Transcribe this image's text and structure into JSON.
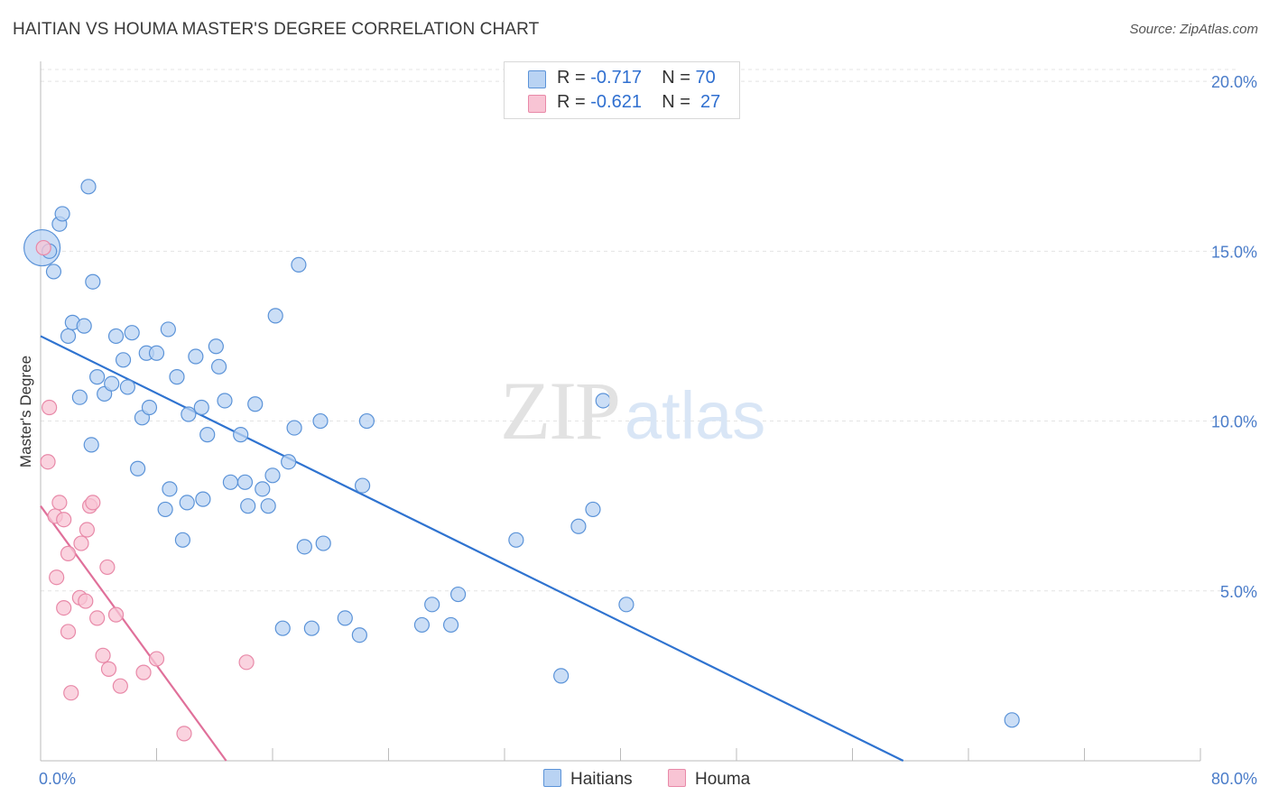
{
  "title": "HAITIAN VS HOUMA MASTER'S DEGREE CORRELATION CHART",
  "source": "Source: ZipAtlas.com",
  "watermark": {
    "part1": "ZIP",
    "part2": "atlas"
  },
  "legend": {
    "items": [
      {
        "r_label": "R =",
        "r_value": "-0.717",
        "n_label": "N =",
        "n_value": "70"
      },
      {
        "r_label": "R =",
        "r_value": "-0.621",
        "n_label": "N =",
        "n_value": "27"
      }
    ]
  },
  "colors": {
    "haitians_fill": "#b9d3f3",
    "haitians_stroke": "#5b93d8",
    "haitians_line": "#2f73d0",
    "houma_fill": "#f8c4d4",
    "houma_stroke": "#e889a8",
    "houma_line": "#e0709a",
    "tick_text": "#4a7cc9",
    "grid": "#e4e4e4"
  },
  "chart_data": {
    "type": "scatter",
    "title": "HAITIAN VS HOUMA MASTER'S DEGREE CORRELATION CHART",
    "xlabel": "",
    "ylabel": "Master's Degree",
    "xlim": [
      0,
      80
    ],
    "ylim": [
      0,
      20.8
    ],
    "y_ticks": [
      5,
      10,
      15,
      20
    ],
    "y_tick_labels": [
      "5.0%",
      "10.0%",
      "15.0%",
      "20.0%"
    ],
    "x_tick_labels": [
      "0.0%",
      "80.0%"
    ],
    "grid": true,
    "series": [
      {
        "name": "Haitians",
        "r": -0.717,
        "n": 70,
        "trend": {
          "x0": 0,
          "y0": 12.5,
          "x1": 59.5,
          "y1": 0
        },
        "points": [
          [
            0.1,
            15.1
          ],
          [
            0.6,
            15.0
          ],
          [
            0.9,
            14.4
          ],
          [
            1.3,
            15.8
          ],
          [
            1.5,
            16.1
          ],
          [
            3.3,
            16.9
          ],
          [
            3.6,
            14.1
          ],
          [
            1.9,
            12.5
          ],
          [
            2.2,
            12.9
          ],
          [
            3.0,
            12.8
          ],
          [
            2.7,
            10.7
          ],
          [
            3.9,
            11.3
          ],
          [
            4.4,
            10.8
          ],
          [
            4.9,
            11.1
          ],
          [
            5.2,
            12.5
          ],
          [
            5.7,
            11.8
          ],
          [
            6.0,
            11.0
          ],
          [
            6.3,
            12.6
          ],
          [
            7.0,
            10.1
          ],
          [
            7.3,
            12.0
          ],
          [
            7.5,
            10.4
          ],
          [
            8.0,
            12.0
          ],
          [
            8.8,
            12.7
          ],
          [
            9.4,
            11.3
          ],
          [
            10.2,
            10.2
          ],
          [
            10.7,
            11.9
          ],
          [
            11.1,
            10.4
          ],
          [
            11.5,
            9.6
          ],
          [
            12.1,
            12.2
          ],
          [
            12.3,
            11.6
          ],
          [
            12.7,
            10.6
          ],
          [
            13.1,
            8.2
          ],
          [
            13.8,
            9.6
          ],
          [
            14.1,
            8.2
          ],
          [
            14.8,
            10.5
          ],
          [
            15.3,
            8.0
          ],
          [
            15.7,
            7.5
          ],
          [
            16.0,
            8.4
          ],
          [
            16.2,
            13.1
          ],
          [
            17.1,
            8.8
          ],
          [
            17.5,
            9.8
          ],
          [
            17.8,
            14.6
          ],
          [
            19.3,
            10.0
          ],
          [
            22.5,
            10.0
          ],
          [
            22.2,
            8.1
          ],
          [
            3.5,
            9.3
          ],
          [
            6.7,
            8.6
          ],
          [
            8.6,
            7.4
          ],
          [
            8.9,
            8.0
          ],
          [
            9.8,
            6.5
          ],
          [
            10.1,
            7.6
          ],
          [
            11.2,
            7.7
          ],
          [
            14.3,
            7.5
          ],
          [
            18.2,
            6.3
          ],
          [
            19.5,
            6.4
          ],
          [
            16.7,
            3.9
          ],
          [
            18.7,
            3.9
          ],
          [
            21.0,
            4.2
          ],
          [
            22.0,
            3.7
          ],
          [
            26.3,
            4.0
          ],
          [
            27.0,
            4.6
          ],
          [
            28.3,
            4.0
          ],
          [
            28.8,
            4.9
          ],
          [
            32.8,
            6.5
          ],
          [
            35.9,
            2.5
          ],
          [
            37.1,
            6.9
          ],
          [
            38.1,
            7.4
          ],
          [
            38.8,
            10.6
          ],
          [
            40.4,
            4.6
          ],
          [
            67.0,
            1.2
          ]
        ]
      },
      {
        "name": "Houma",
        "r": -0.621,
        "n": 27,
        "trend": {
          "x0": 0,
          "y0": 7.5,
          "x1": 12.8,
          "y1": 0
        },
        "points": [
          [
            0.2,
            15.1
          ],
          [
            0.6,
            10.4
          ],
          [
            0.5,
            8.8
          ],
          [
            1.0,
            7.2
          ],
          [
            1.3,
            7.6
          ],
          [
            1.6,
            7.1
          ],
          [
            1.1,
            5.4
          ],
          [
            1.6,
            4.5
          ],
          [
            1.9,
            3.8
          ],
          [
            1.9,
            6.1
          ],
          [
            2.1,
            2.0
          ],
          [
            2.7,
            4.8
          ],
          [
            2.8,
            6.4
          ],
          [
            3.1,
            4.7
          ],
          [
            3.2,
            6.8
          ],
          [
            3.4,
            7.5
          ],
          [
            3.6,
            7.6
          ],
          [
            3.9,
            4.2
          ],
          [
            4.3,
            3.1
          ],
          [
            4.6,
            5.7
          ],
          [
            4.7,
            2.7
          ],
          [
            5.2,
            4.3
          ],
          [
            5.5,
            2.2
          ],
          [
            7.1,
            2.6
          ],
          [
            8.0,
            3.0
          ],
          [
            9.9,
            0.8
          ],
          [
            14.2,
            2.9
          ]
        ]
      }
    ]
  },
  "bottom_legend": {
    "haitians": "Haitians",
    "houma": "Houma"
  }
}
